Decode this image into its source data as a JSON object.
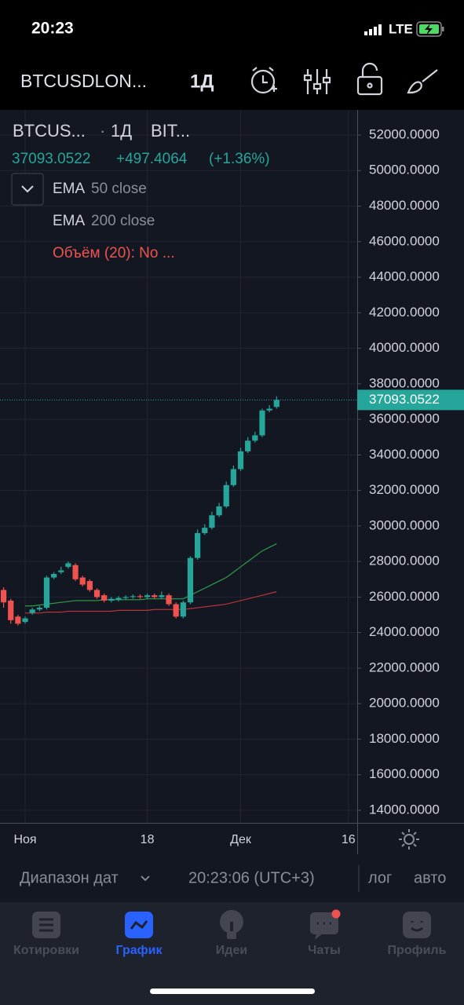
{
  "status_bar": {
    "time": "20:23",
    "network": "LTE"
  },
  "toolbar": {
    "symbol": "BTCUSDLON...",
    "interval": "1Д"
  },
  "legend": {
    "symbol": "BTCUS...",
    "separator": "·",
    "interval": "1Д",
    "exchange": "BIT...",
    "price": "37093.0522",
    "change": "+497.4064",
    "change_pct": "(+1.36%)",
    "indicators": [
      {
        "name": "EMA",
        "params": "50 close"
      },
      {
        "name": "EMA",
        "params": "200 close"
      }
    ],
    "volume": "Объём (20): No ..."
  },
  "chart_data": {
    "type": "candlestick",
    "categories": [
      null,
      null,
      null,
      "Ноя",
      null,
      null,
      null,
      null,
      null,
      null,
      null,
      null,
      null,
      null,
      null,
      null,
      null,
      null,
      null,
      null,
      "18",
      null,
      null,
      null,
      null,
      null,
      null,
      null,
      null,
      null,
      null,
      null,
      null,
      "Дек",
      null,
      null,
      null,
      null,
      null,
      null,
      null,
      null,
      null,
      null,
      null,
      null,
      null,
      null,
      "16"
    ],
    "open": [
      26400,
      25800,
      24900,
      24600,
      25100,
      25300,
      25400,
      27100,
      27400,
      27700,
      27800,
      27100,
      26900,
      26400,
      26100,
      25800,
      25850,
      25950,
      26000,
      26050,
      26000,
      26100,
      26000,
      26100,
      25600,
      24900,
      25700,
      28200,
      29600,
      29900,
      30600,
      31100,
      32300,
      33200,
      34200,
      34800,
      35100,
      36500,
      36700,
      null,
      null,
      null,
      null,
      null,
      null,
      null,
      null,
      null,
      null
    ],
    "high": [
      26550,
      25900,
      25000,
      24900,
      25400,
      25500,
      27200,
      27400,
      27700,
      28000,
      27900,
      27200,
      27000,
      26500,
      26200,
      26000,
      26050,
      26100,
      26150,
      26150,
      26200,
      26200,
      26300,
      26200,
      25700,
      25800,
      28300,
      29800,
      30100,
      30800,
      31300,
      32500,
      33400,
      34400,
      35000,
      35300,
      36600,
      36800,
      37300,
      null,
      null,
      null,
      null,
      null,
      null,
      null,
      null,
      null,
      null
    ],
    "low": [
      25400,
      24500,
      24400,
      24500,
      25000,
      25200,
      25300,
      27000,
      27300,
      27600,
      26900,
      26600,
      26300,
      25900,
      25700,
      25700,
      25750,
      25850,
      25900,
      25900,
      25900,
      25900,
      25900,
      25500,
      24800,
      24800,
      25600,
      28100,
      29500,
      29800,
      30500,
      31000,
      32200,
      33100,
      34100,
      34700,
      35000,
      36400,
      36600,
      null,
      null,
      null,
      null,
      null,
      null,
      null,
      null,
      null,
      null
    ],
    "close": [
      25700,
      24700,
      24500,
      24800,
      25300,
      25400,
      27100,
      27300,
      27500,
      27900,
      27000,
      26700,
      26400,
      26000,
      25800,
      25900,
      25950,
      26000,
      26050,
      26000,
      26100,
      26000,
      26100,
      25600,
      24900,
      25700,
      28200,
      29600,
      29900,
      30600,
      31100,
      32300,
      33200,
      34200,
      34800,
      35100,
      36500,
      36600,
      37093.0522,
      null,
      null,
      null,
      null,
      null,
      null,
      null,
      null,
      null,
      null
    ],
    "up_color": "#26a69a",
    "down_color": "#ef5350",
    "lines": [
      {
        "color": "#2e9e4a",
        "values": [
          null,
          null,
          null,
          25500,
          25500,
          25550,
          25600,
          25650,
          25700,
          25750,
          25800,
          25800,
          25800,
          25800,
          25850,
          25850,
          25850,
          25850,
          25850,
          25850,
          25900,
          25900,
          25900,
          25900,
          25900,
          25900,
          26100,
          26300,
          26500,
          26700,
          26900,
          27100,
          27400,
          27700,
          28000,
          28300,
          28600,
          28800,
          29000,
          null,
          null,
          null,
          null,
          null,
          null,
          null,
          null,
          null,
          null
        ]
      },
      {
        "color": "#b8333a",
        "values": [
          null,
          null,
          null,
          25100,
          25100,
          25100,
          25150,
          25150,
          25150,
          25200,
          25200,
          25200,
          25200,
          25200,
          25200,
          25200,
          25250,
          25250,
          25250,
          25250,
          25250,
          25300,
          25300,
          25300,
          25300,
          25300,
          25350,
          25400,
          25450,
          25500,
          25550,
          25600,
          25700,
          25800,
          25900,
          26000,
          26100,
          26200,
          26300,
          null,
          null,
          null,
          null,
          null,
          null,
          null,
          null,
          null,
          null
        ]
      }
    ],
    "ylim": [
      13293,
      53414
    ],
    "yticks": [
      {
        "value": 14000,
        "label": "14000.0000"
      },
      {
        "value": 16000,
        "label": "16000.0000"
      },
      {
        "value": 18000,
        "label": "18000.0000"
      },
      {
        "value": 20000,
        "label": "20000.0000"
      },
      {
        "value": 22000,
        "label": "22000.0000"
      },
      {
        "value": 24000,
        "label": "24000.0000"
      },
      {
        "value": 26000,
        "label": "26000.0000"
      },
      {
        "value": 28000,
        "label": "28000.0000"
      },
      {
        "value": 30000,
        "label": "30000.0000"
      },
      {
        "value": 32000,
        "label": "32000.0000"
      },
      {
        "value": 34000,
        "label": "34000.0000"
      },
      {
        "value": 36000,
        "label": "36000.0000"
      },
      {
        "value": 38000,
        "label": "38000.0000"
      },
      {
        "value": 40000,
        "label": "40000.0000"
      },
      {
        "value": 42000,
        "label": "42000.0000"
      },
      {
        "value": 44000,
        "label": "44000.0000"
      },
      {
        "value": 46000,
        "label": "46000.0000"
      },
      {
        "value": 48000,
        "label": "48000.0000"
      },
      {
        "value": 50000,
        "label": "50000.0000"
      },
      {
        "value": 52000,
        "label": "52000.0000"
      }
    ],
    "last_price": {
      "value": 37093.0522,
      "label": "37093.0522"
    },
    "grid": true
  },
  "bottom_bar": {
    "range": "Диапазон дат",
    "time": "20:23:06 (UTC+3)",
    "log": "лог",
    "auto": "авто"
  },
  "tabs": [
    {
      "label": "Котировки",
      "active": false
    },
    {
      "label": "График",
      "active": true
    },
    {
      "label": "Идеи",
      "active": false
    },
    {
      "label": "Чаты",
      "active": false
    },
    {
      "label": "Профиль",
      "active": false
    }
  ]
}
